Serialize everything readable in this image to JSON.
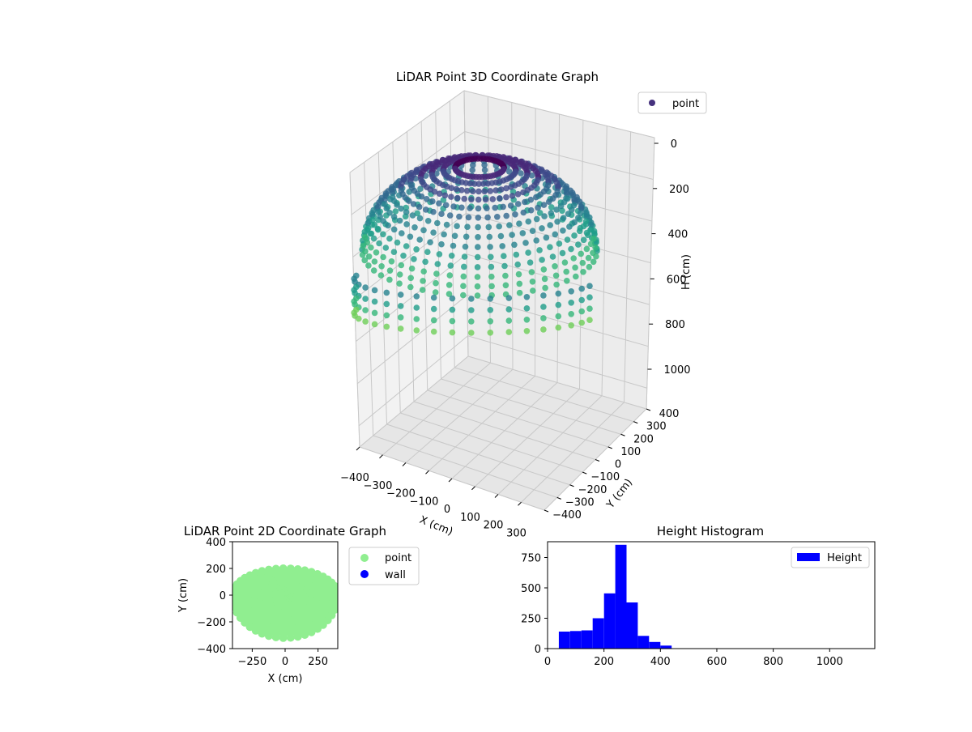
{
  "chart_data": [
    {
      "type": "scatter",
      "title": "LiDAR Point 3D Coordinate Graph",
      "xlabel": "X (cm)",
      "ylabel": "Y (cm)",
      "zlabel": "H (cm)",
      "x_ticks": [
        "−400",
        "−300",
        "−200",
        "−100",
        "0",
        "100",
        "200",
        "300"
      ],
      "y_ticks": [
        "−400",
        "−300",
        "−200",
        "−100",
        "0",
        "100",
        "200",
        "300",
        "400"
      ],
      "z_ticks": [
        "0",
        "200",
        "400",
        "600",
        "800",
        "1000"
      ],
      "xlim": [
        -400,
        400
      ],
      "ylim": [
        -400,
        400
      ],
      "zlim": [
        0,
        1100
      ],
      "z_inverted": true,
      "colormap": "viridis",
      "legend": [
        {
          "label": "point",
          "color": "#46327e"
        }
      ],
      "legend_position": "upper-right",
      "grid": true,
      "point_cloud": {
        "shape": "dome",
        "radius_cm": 380,
        "height_range_cm": [
          50,
          450
        ],
        "description_only": false
      }
    },
    {
      "type": "scatter",
      "title": "LiDAR Point 2D Coordinate Graph",
      "xlabel": "X (cm)",
      "ylabel": "Y (cm)",
      "x_ticks": [
        "−250",
        "0",
        "250"
      ],
      "y_ticks": [
        "−400",
        "−200",
        "0",
        "200",
        "400"
      ],
      "xlim": [
        -400,
        400
      ],
      "ylim": [
        -400,
        400
      ],
      "series": [
        {
          "name": "point",
          "color": "#90ee90"
        },
        {
          "name": "wall",
          "color": "#0000ff"
        }
      ],
      "legend_position": "outside-right"
    },
    {
      "type": "bar",
      "title": "Height Histogram",
      "xlabel": "",
      "ylabel": "",
      "x_ticks": [
        "0",
        "200",
        "400",
        "600",
        "800",
        "1000"
      ],
      "y_ticks": [
        "0",
        "250",
        "500",
        "750"
      ],
      "xlim": [
        0,
        1160
      ],
      "ylim": [
        0,
        880
      ],
      "bin_edges": [
        40,
        80,
        120,
        160,
        200,
        240,
        280,
        320,
        360,
        400,
        440
      ],
      "values": [
        140,
        145,
        150,
        250,
        455,
        855,
        380,
        105,
        55,
        25
      ],
      "series": [
        {
          "name": "Height",
          "color": "#0000ff"
        }
      ],
      "legend_position": "upper-right"
    }
  ]
}
